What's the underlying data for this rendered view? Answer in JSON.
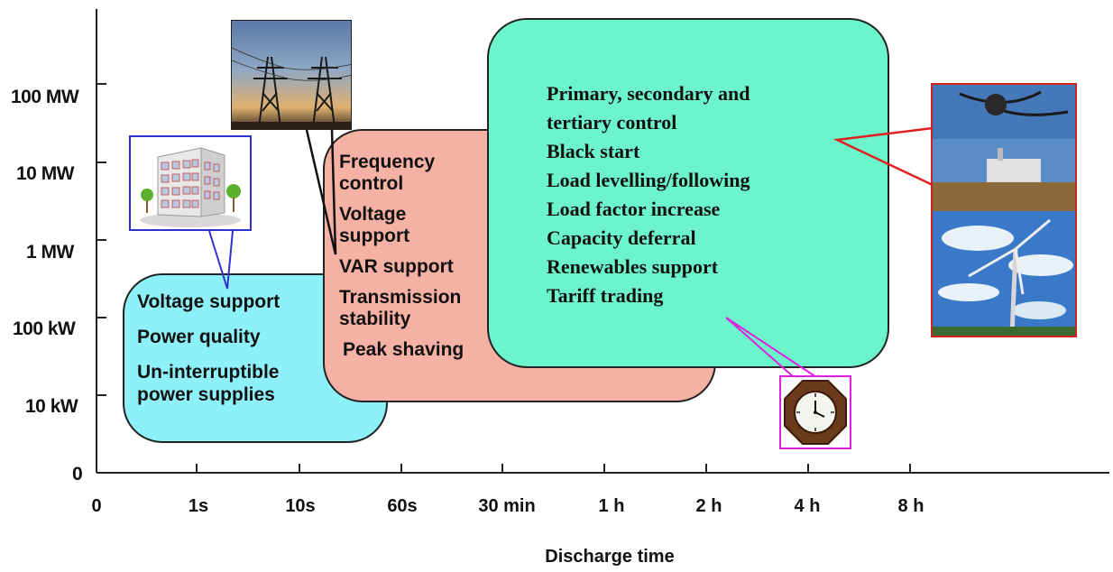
{
  "chart_data": {
    "type": "diagram",
    "xlabel": "Discharge time",
    "x_ticks": [
      "0",
      "1s",
      "10s",
      "60s",
      "30 min",
      "1 h",
      "2 h",
      "4 h",
      "8 h"
    ],
    "y_ticks": [
      "100 MW",
      "10 MW",
      "1 MW",
      "100 kW",
      "10 kW",
      "0"
    ],
    "groups": [
      {
        "id": "power-quality",
        "color": "#8ef0f8",
        "items": [
          "Voltage support",
          "Power quality",
          "Un-interruptible power supplies"
        ],
        "icon": "building-icon"
      },
      {
        "id": "transmission",
        "color": "#f6b1a5",
        "items": [
          "Frequency control",
          "Voltage support",
          "VAR support",
          "Transmission stability",
          "Peak shaving"
        ],
        "icon": "power-pylon-icon"
      },
      {
        "id": "energy-management",
        "color": "#6cf5cb",
        "items": [
          "Primary, secondary and tertiary control",
          "Black start",
          "Load levelling/following",
          "Load factor increase",
          "Capacity deferral",
          "Renewables support",
          "Tariff trading"
        ],
        "icon": "power-plant-wind-turbine-icon"
      }
    ],
    "clock_icon": "clock-icon"
  }
}
